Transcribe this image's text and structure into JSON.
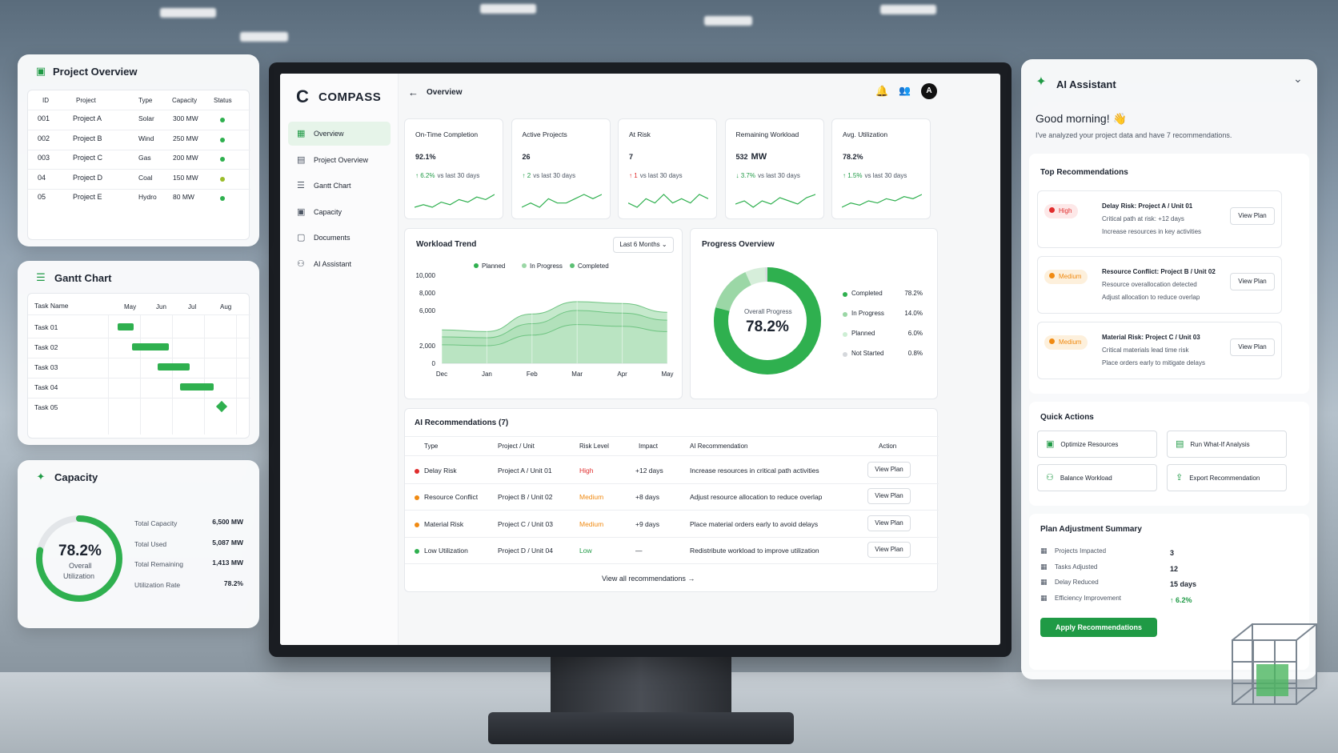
{
  "project_overview_panel": {
    "title": "Project Overview",
    "headers": [
      "ID",
      "Project",
      "Type",
      "Capacity",
      "Status"
    ],
    "rows": [
      {
        "id": "001",
        "project": "Project A",
        "type": "Solar",
        "capacity": "300 MW",
        "status_color": "#2fb04f"
      },
      {
        "id": "002",
        "project": "Project B",
        "type": "Wind",
        "capacity": "250 MW",
        "status_color": "#2fb04f"
      },
      {
        "id": "003",
        "project": "Project C",
        "type": "Gas",
        "capacity": "200 MW",
        "status_color": "#2fb04f"
      },
      {
        "id": "04",
        "project": "Project D",
        "type": "Coal",
        "capacity": "150 MW",
        "status_color": "#9bbd2a"
      },
      {
        "id": "05",
        "project": "Project E",
        "type": "Hydro",
        "capacity": "80 MW",
        "status_color": "#2fb04f"
      }
    ]
  },
  "gantt_panel": {
    "title": "Gantt Chart",
    "task_header": "Task Name",
    "months": [
      "May",
      "Jun",
      "Jul",
      "Aug"
    ],
    "tasks": [
      {
        "name": "Task 01",
        "start": 0.3,
        "end": 0.8
      },
      {
        "name": "Task 02",
        "start": 0.75,
        "end": 1.9
      },
      {
        "name": "Task 03",
        "start": 1.55,
        "end": 2.55
      },
      {
        "name": "Task 04",
        "start": 2.25,
        "end": 3.3
      },
      {
        "name": "Task 05",
        "milestone": 3.55
      }
    ]
  },
  "capacity_panel": {
    "title": "Capacity",
    "percent": "78.2%",
    "percent_value": 78.2,
    "caption_1": "Overall",
    "caption_2": "Utilization",
    "stats": [
      {
        "label": "Total Capacity",
        "value": "6,500 MW"
      },
      {
        "label": "Total Used",
        "value": "5,087 MW"
      },
      {
        "label": "Total Remaining",
        "value": "1,413 MW"
      },
      {
        "label": "Utilization Rate",
        "value": "78.2%"
      }
    ]
  },
  "app": {
    "brand": "COMPASS",
    "page_title": "Overview",
    "avatar_letter": "A",
    "nav": [
      {
        "label": "Overview",
        "icon": "grid-icon",
        "active": true
      },
      {
        "label": "Project Overview",
        "icon": "table-icon"
      },
      {
        "label": "Gantt Chart",
        "icon": "gantt-icon"
      },
      {
        "label": "Capacity",
        "icon": "clipboard-icon"
      },
      {
        "label": "Documents",
        "icon": "document-icon"
      },
      {
        "label": "AI Assistant",
        "icon": "robot-icon"
      }
    ],
    "kpis": [
      {
        "label": "On-Time Completion",
        "value": "92.1%",
        "unit": "",
        "dir": "up",
        "delta": "6.2%",
        "suffix": "vs last 30 days"
      },
      {
        "label": "Active Projects",
        "value": "26",
        "unit": "",
        "dir": "up",
        "delta": "2",
        "suffix": "vs last 30 days"
      },
      {
        "label": "At Risk",
        "value": "7",
        "unit": "",
        "dir": "up-red",
        "delta": "1",
        "suffix": "vs last 30 days"
      },
      {
        "label": "Remaining Workload",
        "value": "532",
        "unit": "MW",
        "dir": "down",
        "delta": "3.7%",
        "suffix": "vs last 30 days"
      },
      {
        "label": "Avg. Utilization",
        "value": "78.2%",
        "unit": "",
        "dir": "up",
        "delta": "1.5%",
        "suffix": "vs last 30 days"
      }
    ],
    "workload": {
      "title": "Workload Trend",
      "range": "Last 6 Months",
      "legend": [
        "Planned",
        "In Progress",
        "Completed"
      ]
    },
    "progress": {
      "title": "Progress Overview",
      "center_label": "Overall Progress",
      "center_value": "78.2%"
    },
    "recs": {
      "title": "AI Recommendations (7)",
      "headers": [
        "Type",
        "Project / Unit",
        "Risk Level",
        "Impact",
        "AI Recommendation",
        "Action"
      ],
      "rows": [
        {
          "type": "Delay Risk",
          "color": "#e02d2d",
          "project": "Project A / Unit 01",
          "risk": "High",
          "risk_class": "red",
          "impact": "+12 days",
          "rec": "Increase resources in critical path activities",
          "action": "View Plan"
        },
        {
          "type": "Resource Conflict",
          "color": "#f08a12",
          "project": "Project B / Unit 02",
          "risk": "Medium",
          "risk_class": "orange",
          "impact": "+8 days",
          "rec": "Adjust resource allocation to reduce overlap",
          "action": "View Plan"
        },
        {
          "type": "Material Risk",
          "color": "#f08a12",
          "project": "Project C / Unit 03",
          "risk": "Medium",
          "risk_class": "orange",
          "impact": "+9 days",
          "rec": "Place material orders early to avoid delays",
          "action": "View Plan"
        },
        {
          "type": "Low Utilization",
          "color": "#2fb04f",
          "project": "Project D / Unit 04",
          "risk": "Low",
          "risk_class": "green",
          "impact": "—",
          "rec": "Redistribute workload to improve utilization",
          "action": "View Plan"
        }
      ],
      "view_all": "View all recommendations"
    }
  },
  "chart_data": [
    {
      "type": "area",
      "title": "Workload Trend",
      "x": [
        "Dec",
        "Jan",
        "Feb",
        "Mar",
        "Apr",
        "May"
      ],
      "ylim": [
        0,
        10000
      ],
      "yticks": [
        0,
        2000,
        6000,
        8000,
        10000
      ],
      "ytick_labels": [
        "0",
        "2,000",
        "6,000",
        "8,000",
        "10,000"
      ],
      "legend_position": "top",
      "series": [
        {
          "name": "Planned",
          "color": "#7fcf8f",
          "values": [
            3800,
            3600,
            5600,
            7000,
            6800,
            5800
          ]
        },
        {
          "name": "In Progress",
          "color": "#9bd7a6",
          "values": [
            3000,
            2900,
            4500,
            6000,
            5700,
            4900
          ]
        },
        {
          "name": "Completed",
          "color": "#c4e8cb",
          "values": [
            2100,
            2000,
            3200,
            4400,
            4200,
            3600
          ]
        }
      ]
    },
    {
      "type": "pie",
      "title": "Progress Overview",
      "categories": [
        "Completed",
        "In Progress",
        "Planned",
        "Not Started"
      ],
      "values": [
        78.2,
        14.0,
        6.0,
        0.8
      ],
      "value_labels": [
        "78.2%",
        "14.0%",
        "6.0%",
        "0.8%"
      ],
      "colors": [
        "#2fb04f",
        "#9bd7a6",
        "#d6eeda",
        "#d5d8dc"
      ]
    }
  ],
  "kpi_sparklines": [
    [
      5,
      6,
      5,
      7,
      6,
      8,
      7,
      9,
      8,
      10
    ],
    [
      6,
      7,
      6,
      8,
      7,
      7,
      8,
      9,
      8,
      9
    ],
    [
      7,
      6,
      8,
      7,
      9,
      7,
      8,
      7,
      9,
      8
    ],
    [
      6,
      7,
      5,
      7,
      6,
      8,
      7,
      6,
      8,
      9
    ],
    [
      5,
      7,
      6,
      8,
      7,
      9,
      8,
      10,
      9,
      11
    ]
  ],
  "ai_panel": {
    "title": "AI Assistant",
    "greeting": "Good morning! 👋",
    "subtitle": "I've analyzed your project data and have 7 recommendations.",
    "top_title": "Top Recommendations",
    "top": [
      {
        "badge": "High",
        "badge_class": "red",
        "color": "#e02d2d",
        "title": "Delay Risk: Project A / Unit 01",
        "line1": "Critical path at risk: +12 days",
        "line2": "Increase resources in key activities",
        "action": "View Plan"
      },
      {
        "badge": "Medium",
        "badge_class": "orange",
        "color": "#f08a12",
        "title": "Resource Conflict: Project B / Unit 02",
        "line1": "Resource overallocation detected",
        "line2": "Adjust allocation to reduce overlap",
        "action": "View Plan"
      },
      {
        "badge": "Medium",
        "badge_class": "orange",
        "color": "#f08a12",
        "title": "Material Risk: Project C / Unit 03",
        "line1": "Critical materials lead time risk",
        "line2": "Place orders early to mitigate delays",
        "action": "View Plan"
      }
    ],
    "quick_title": "Quick Actions",
    "quick": [
      "Optimize Resources",
      "Run What-If Analysis",
      "Balance Workload",
      "Export Recommendation"
    ],
    "summary_title": "Plan Adjustment Summary",
    "summary": [
      {
        "label": "Projects Impacted",
        "value": "3"
      },
      {
        "label": "Tasks Adjusted",
        "value": "12"
      },
      {
        "label": "Delay Reduced",
        "value": "15 days"
      },
      {
        "label": "Efficiency Improvement",
        "value": "↑ 6.2%"
      }
    ],
    "apply": "Apply Recommendations"
  }
}
